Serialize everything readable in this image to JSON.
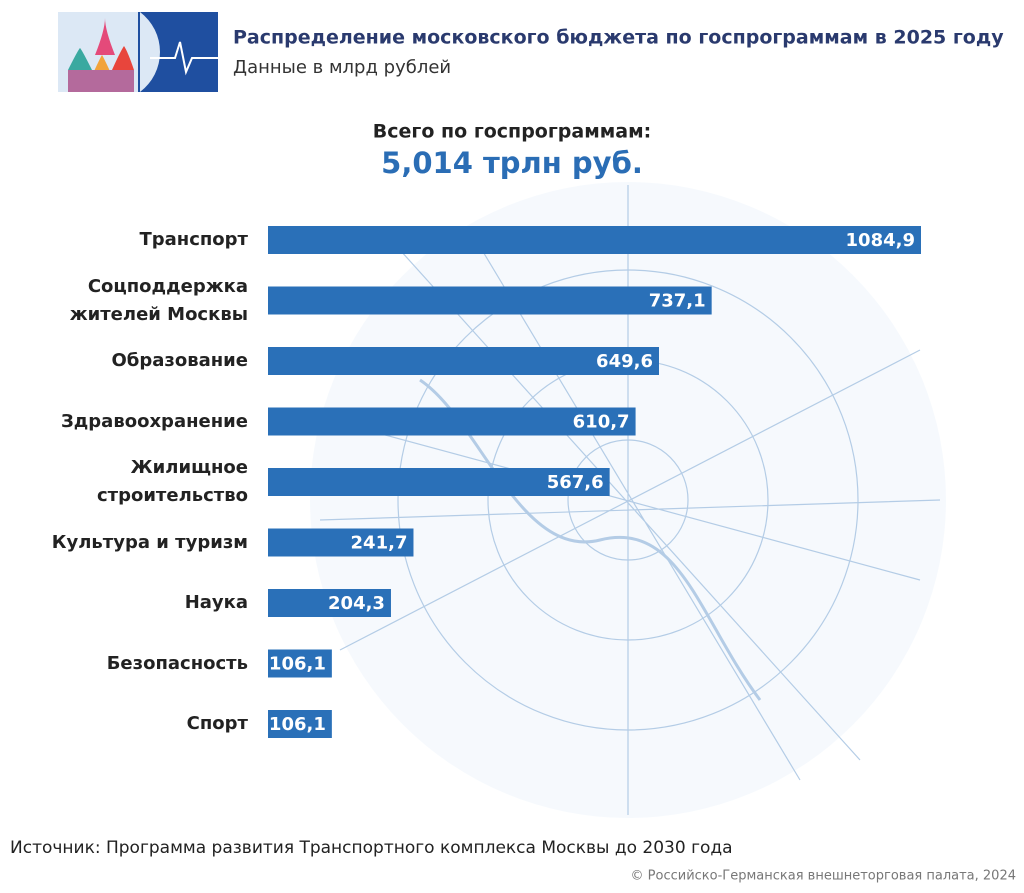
{
  "chart_data": {
    "type": "hbar",
    "title": "Распределение московского бюджета по госпрограммам в 2025 году",
    "subtitle": "Данные в млрд рублей",
    "total_label": "Всего по госпрограммам:",
    "total": "5,014 трлн руб.",
    "categories": [
      "Транспорт",
      "Соцподдержка жителей Москвы",
      "Образование",
      "Здравоохранение",
      "Жилищное строительство",
      "Культура и туризм",
      "Наука",
      "Безопасность",
      "Спорт"
    ],
    "values": [
      1084.9,
      737.1,
      649.6,
      610.7,
      567.6,
      241.7,
      204.3,
      106.1,
      106.1
    ],
    "value_labels": [
      "1084,9",
      "737,1",
      "649,6",
      "610,7",
      "567,6",
      "241,7",
      "204,3",
      "106,1",
      "106,1"
    ],
    "color": "#2a70b8",
    "source": "Источник: Программа развития Транспортного комплекса Москвы до 2030 года",
    "copyright": "© Российско-Германская внешнеторговая палата, 2024"
  }
}
